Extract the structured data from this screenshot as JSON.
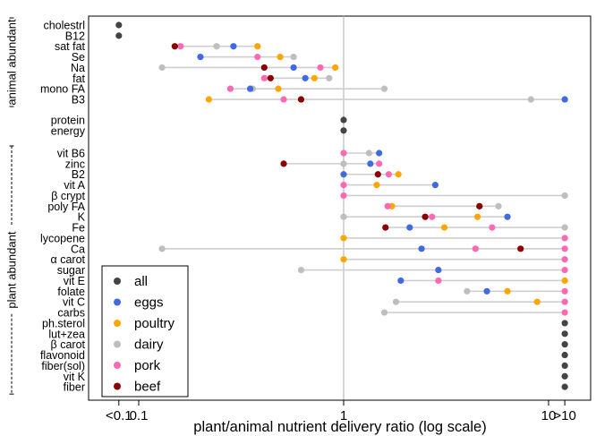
{
  "chart_data": {
    "type": "scatter",
    "xlabel": "plant/animal nutrient delivery ratio (log scale)",
    "x_scale": "log",
    "xlim": [
      0.08,
      12
    ],
    "x_ticks": [
      {
        "value": 0.08,
        "label": "<0.1"
      },
      {
        "value": 0.1,
        "label": "0.1"
      },
      {
        "value": 1,
        "label": "1"
      },
      {
        "value": 10,
        "label": "10"
      },
      {
        "value": 12,
        "label": ">10"
      }
    ],
    "grid": false,
    "legend_position": "bottom-left",
    "series": [
      {
        "name": "all",
        "color": "#444444"
      },
      {
        "name": "eggs",
        "color": "#4169e1"
      },
      {
        "name": "poultry",
        "color": "#ffa500"
      },
      {
        "name": "dairy",
        "color": "#bebebe"
      },
      {
        "name": "pork",
        "color": "#ff69b4"
      },
      {
        "name": "beef",
        "color": "#8b0000"
      }
    ],
    "groups": [
      {
        "label": "animal abundant",
        "from": "cholestrl",
        "to": "B3"
      },
      {
        "label": "plant abundant",
        "from": "vit B6",
        "to": "fiber"
      }
    ],
    "nutrients": [
      {
        "name": "cholestrl",
        "values": {
          "all": 0.08
        }
      },
      {
        "name": "B12",
        "values": {
          "all": 0.08
        }
      },
      {
        "name": "sat fat",
        "values": {
          "beef": 0.15,
          "pork": 0.16,
          "dairy": 0.24,
          "eggs": 0.29,
          "poultry": 0.38
        }
      },
      {
        "name": "Se",
        "values": {
          "eggs": 0.2,
          "pork": 0.38,
          "poultry": 0.49,
          "dairy": 0.57
        }
      },
      {
        "name": "Na",
        "values": {
          "dairy": 0.13,
          "beef": 0.41,
          "eggs": 0.57,
          "pork": 0.77,
          "poultry": 0.91
        }
      },
      {
        "name": "fat",
        "values": {
          "pork": 0.41,
          "beef": 0.44,
          "eggs": 0.65,
          "poultry": 0.72,
          "dairy": 0.85
        }
      },
      {
        "name": "mono FA",
        "values": {
          "pork": 0.28,
          "eggs": 0.35,
          "dairy": 0.36,
          "poultry": 0.48,
          "dairy_2": 1.58
        }
      },
      {
        "name": "B3",
        "values": {
          "poultry": 0.22,
          "pork": 0.51,
          "beef": 0.62,
          "dairy": 8.2,
          "eggs": 12
        }
      },
      {
        "name": "protein",
        "values": {
          "all": 1
        }
      },
      {
        "name": "energy",
        "values": {
          "all": 1
        }
      },
      {
        "name": "vit B6",
        "values": {
          "pork": 1,
          "dairy": 1.33,
          "eggs": 1.49
        }
      },
      {
        "name": "zinc",
        "values": {
          "beef": 0.51,
          "dairy": 1,
          "eggs": 1.35,
          "pork": 1.49
        }
      },
      {
        "name": "B2",
        "values": {
          "eggs": 1,
          "beef": 1.47,
          "pork": 1.66,
          "poultry": 1.85
        }
      },
      {
        "name": "vit A",
        "values": {
          "pork": 1,
          "poultry": 1.45,
          "eggs": 2.8
        }
      },
      {
        "name": "β crypt",
        "values": {
          "pork": 1,
          "dairy": 12
        }
      },
      {
        "name": "poly FA",
        "values": {
          "pork": 1.64,
          "poultry": 1.72,
          "beef": 4.6,
          "dairy": 5.7
        }
      },
      {
        "name": "K",
        "values": {
          "dairy": 1,
          "beef": 2.5,
          "pork": 2.7,
          "poultry": 4.5,
          "eggs": 6.3
        }
      },
      {
        "name": "Fe",
        "values": {
          "beef": 1.6,
          "eggs": 2.1,
          "poultry": 3.1,
          "pork": 5.3,
          "dairy": 12
        }
      },
      {
        "name": "lycopene",
        "values": {
          "poultry": 1,
          "pork": 12
        }
      },
      {
        "name": "Ca",
        "values": {
          "dairy": 0.13,
          "eggs": 2.4,
          "pork": 4.4,
          "beef": 7.3,
          "pork_2": 12
        }
      },
      {
        "name": "α carot",
        "values": {
          "poultry": 1,
          "pork": 12
        }
      },
      {
        "name": "sugar",
        "values": {
          "dairy": 0.62,
          "eggs": 2.9,
          "pork": 12
        }
      },
      {
        "name": "vit E",
        "values": {
          "eggs": 1.9,
          "pork": 2.9,
          "poultry": 12
        }
      },
      {
        "name": "folate",
        "values": {
          "dairy": 4.0,
          "eggs": 5.0,
          "poultry": 6.3,
          "pork": 12
        }
      },
      {
        "name": "vit C",
        "values": {
          "dairy": 1.8,
          "poultry": 8.8,
          "pork": 12
        }
      },
      {
        "name": "carbs",
        "values": {
          "dairy": 1.58,
          "pork": 12
        }
      },
      {
        "name": "ph.sterol",
        "values": {
          "all": 12
        }
      },
      {
        "name": "lut+zea",
        "values": {
          "all": 12
        }
      },
      {
        "name": "β carot",
        "values": {
          "all": 12
        }
      },
      {
        "name": "flavonoid",
        "values": {
          "all": 12
        }
      },
      {
        "name": "fiber(sol)",
        "values": {
          "all": 12
        }
      },
      {
        "name": "vit K",
        "values": {
          "all": 12
        }
      },
      {
        "name": "fiber",
        "values": {
          "all": 12
        }
      }
    ]
  }
}
